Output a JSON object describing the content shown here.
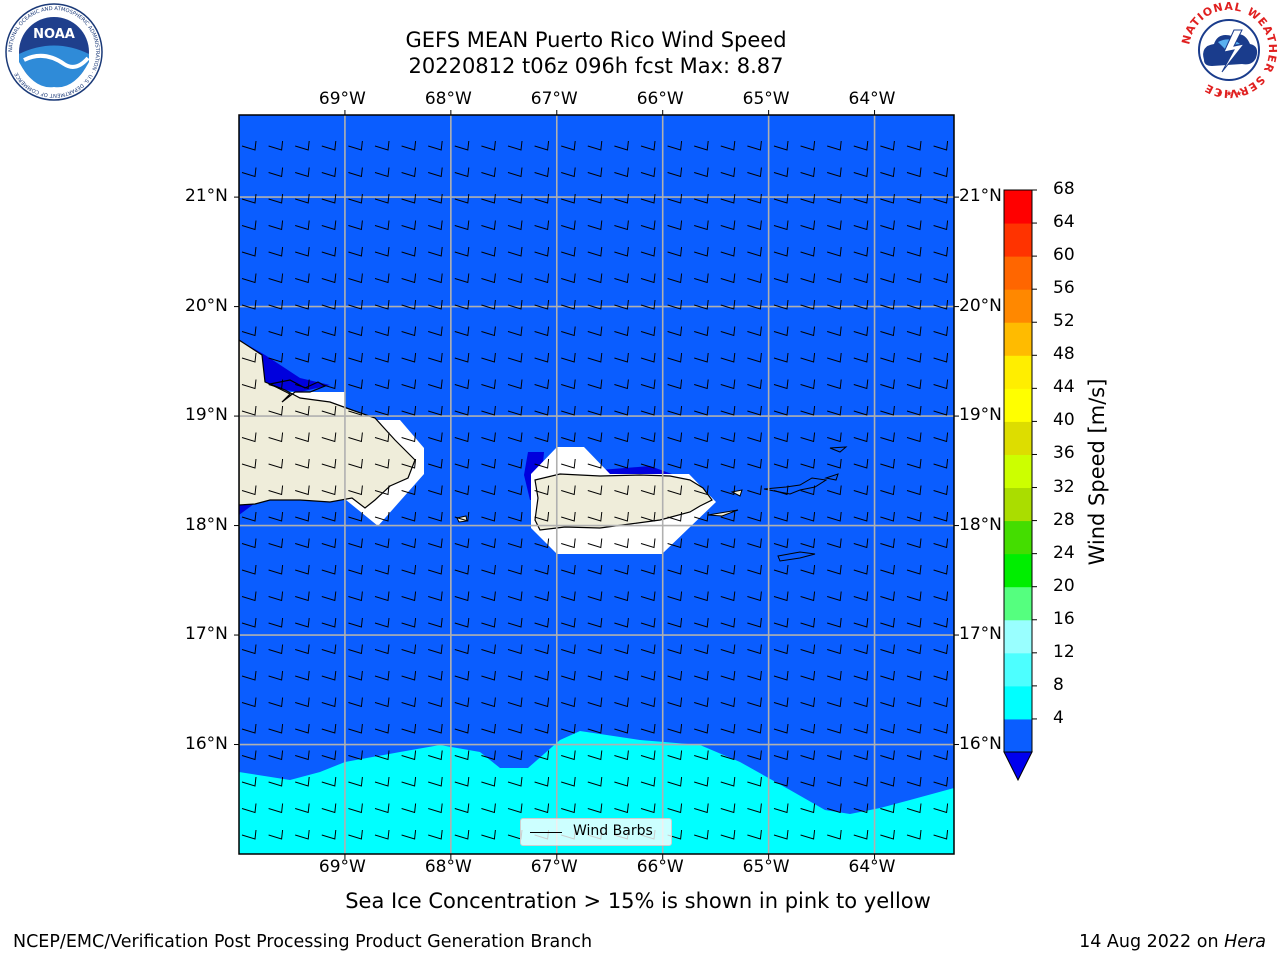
{
  "title": {
    "line1": "GEFS MEAN Puerto Rico Wind Speed",
    "line2": "20220812 t06z 096h fcst   Max: 8.87"
  },
  "map": {
    "lon_labels": [
      "69°W",
      "68°W",
      "67°W",
      "66°W",
      "65°W",
      "64°W"
    ],
    "lat_labels": [
      "21°N",
      "20°N",
      "19°N",
      "18°N",
      "17°N",
      "16°N"
    ],
    "lon_range": [
      -70,
      -63.25
    ],
    "lat_range": [
      15,
      21.75
    ],
    "legend_label": "Wind Barbs",
    "wind_direction": "east-southeast trade winds"
  },
  "colorbar": {
    "label": "Wind Speed [m/s]",
    "ticks": [
      "68",
      "64",
      "60",
      "56",
      "52",
      "48",
      "44",
      "40",
      "36",
      "32",
      "28",
      "24",
      "20",
      "16",
      "12",
      "8",
      "4"
    ],
    "colors": [
      "#0a5dff",
      "#00ffff",
      "#4dffff",
      "#99ffff",
      "#55ff7f",
      "#00ee00",
      "#44dd00",
      "#aadd00",
      "#ccff00",
      "#dddd00",
      "#ffff00",
      "#ffee00",
      "#ffbb00",
      "#ff8800",
      "#ff6600",
      "#ff3300",
      "#ff0000"
    ],
    "under_color": "#0000ee"
  },
  "note": "Sea Ice Concentration > 15% is shown in pink to yellow",
  "footer": {
    "left": "NCEP/EMC/Verification Post Processing Product Generation Branch",
    "date": "14 Aug 2022 on",
    "machine": "Hera"
  },
  "logos": {
    "left": "NOAA",
    "left_ring_text": "NATIONAL OCEANIC AND ATMOSPHERIC ADMINISTRATION · U.S. DEPARTMENT OF COMMERCE",
    "right_ring_text": "NATIONAL WEATHER SERVICE"
  }
}
